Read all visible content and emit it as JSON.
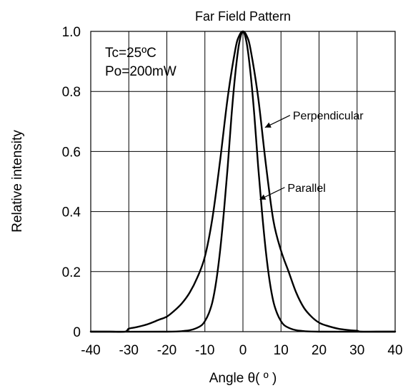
{
  "chart_data": {
    "type": "line",
    "title": "Far Field Pattern",
    "xlabel": "Angle θ( º )",
    "ylabel": "Relative intensity",
    "xlim": [
      -40,
      40
    ],
    "ylim": [
      0,
      1.0
    ],
    "x_ticks": [
      "-40",
      "-30",
      "-20",
      "-10",
      "0",
      "10",
      "20",
      "30",
      "40"
    ],
    "y_ticks": [
      "0",
      "0.2",
      "0.4",
      "0.6",
      "0.8",
      "1.0"
    ],
    "grid": true,
    "conditions": [
      "Tc=25ºC",
      "Po=200mW"
    ],
    "series": [
      {
        "name": "Perpendicular",
        "x": [
          -40,
          -35,
          -31,
          -30,
          -28,
          -25,
          -22,
          -20,
          -18,
          -16,
          -14,
          -12,
          -10,
          -8,
          -6,
          -4,
          -2,
          -1,
          0,
          1,
          2,
          4,
          6,
          8,
          10,
          12,
          14,
          16,
          18,
          20,
          22,
          25,
          28,
          30,
          31,
          35,
          40
        ],
        "y": [
          0,
          0,
          0,
          0.01,
          0.015,
          0.025,
          0.04,
          0.05,
          0.07,
          0.095,
          0.13,
          0.18,
          0.25,
          0.38,
          0.57,
          0.78,
          0.94,
          0.985,
          1.0,
          0.985,
          0.94,
          0.78,
          0.56,
          0.37,
          0.27,
          0.2,
          0.13,
          0.08,
          0.05,
          0.03,
          0.02,
          0.01,
          0.005,
          0.003,
          0,
          0,
          0
        ]
      },
      {
        "name": "Parallel",
        "x": [
          -40,
          -20,
          -15,
          -13,
          -11,
          -10,
          -9,
          -8,
          -7,
          -6,
          -5,
          -4,
          -3,
          -2,
          -1,
          0,
          1,
          2,
          3,
          4,
          5,
          6,
          7,
          8,
          9,
          10,
          11,
          13,
          15,
          20,
          40
        ],
        "y": [
          0,
          0,
          0.003,
          0.008,
          0.02,
          0.035,
          0.06,
          0.1,
          0.17,
          0.27,
          0.4,
          0.55,
          0.72,
          0.86,
          0.96,
          1.0,
          0.96,
          0.86,
          0.72,
          0.55,
          0.4,
          0.27,
          0.17,
          0.1,
          0.06,
          0.035,
          0.02,
          0.008,
          0.003,
          0,
          0
        ]
      }
    ],
    "annotations": [
      {
        "text": "Perpendicular",
        "arrow_to": [
          5.8,
          0.68
        ],
        "series": "Perpendicular"
      },
      {
        "text": "Parallel",
        "arrow_to": [
          4.4,
          0.44
        ],
        "series": "Parallel"
      }
    ]
  }
}
